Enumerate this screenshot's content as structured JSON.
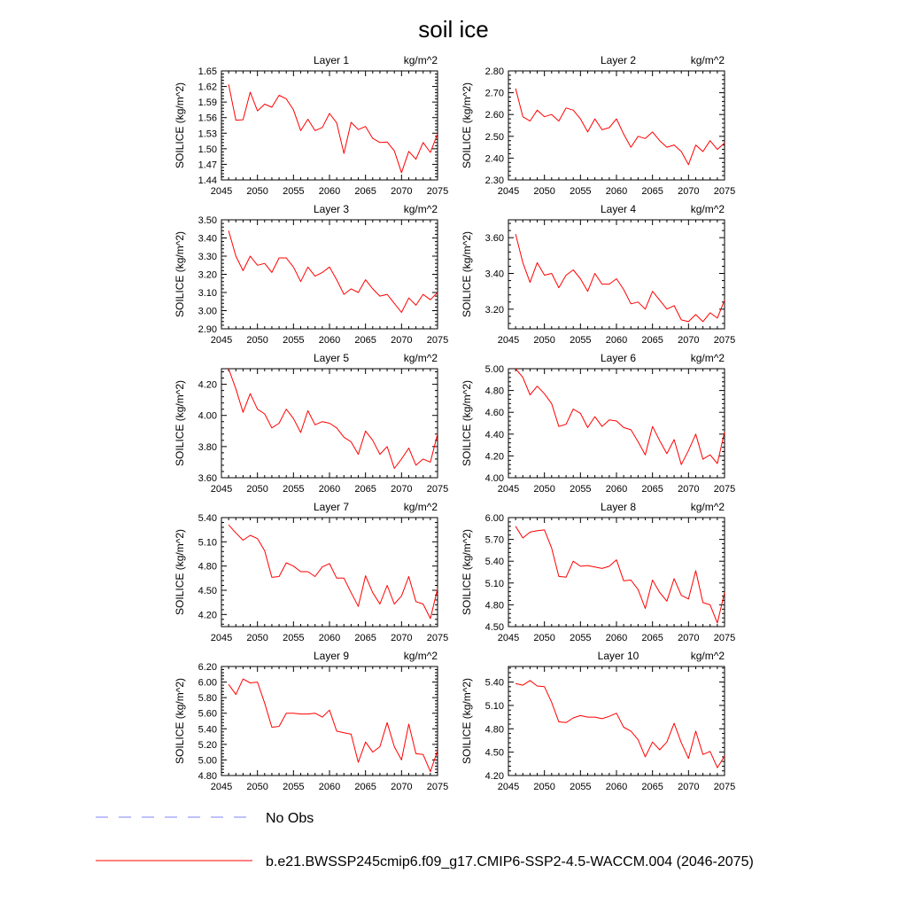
{
  "title": "soil ice",
  "chart_data": {
    "type": "line",
    "title": "soil ice",
    "units": "kg/m^2",
    "ylabel": "SOILICE  (kg/m^2)",
    "x": [
      2046,
      2047,
      2048,
      2049,
      2050,
      2051,
      2052,
      2053,
      2054,
      2055,
      2056,
      2057,
      2058,
      2059,
      2060,
      2061,
      2062,
      2063,
      2064,
      2065,
      2066,
      2067,
      2068,
      2069,
      2070,
      2071,
      2072,
      2073,
      2074,
      2075
    ],
    "xlim": [
      2045,
      2075
    ],
    "xticks": [
      "2045",
      "2050",
      "2055",
      "2060",
      "2065",
      "2070",
      "2075"
    ],
    "legend": [
      {
        "label": "No Obs",
        "color": "#8080ff",
        "style": "dashed"
      },
      {
        "label": "b.e21.BWSSP245cmip6.f09_g17.CMIP6-SSP2-4.5-WACCM.004 (2046-2075)",
        "color": "#ff0000",
        "style": "solid"
      }
    ],
    "panels": [
      {
        "title": "Layer 1",
        "units": "kg/m^2",
        "ylim": [
          1.44,
          1.65
        ],
        "yticks": [
          "1.44",
          "1.47",
          "1.50",
          "1.53",
          "1.56",
          "1.59",
          "1.62",
          "1.65"
        ],
        "values": [
          1.624,
          1.555,
          1.556,
          1.609,
          1.573,
          1.586,
          1.58,
          1.603,
          1.596,
          1.575,
          1.535,
          1.557,
          1.535,
          1.541,
          1.568,
          1.55,
          1.491,
          1.551,
          1.537,
          1.543,
          1.52,
          1.512,
          1.513,
          1.496,
          1.454,
          1.495,
          1.48,
          1.512,
          1.493,
          1.529
        ]
      },
      {
        "title": "Layer 2",
        "units": "kg/m^2",
        "ylim": [
          2.3,
          2.8
        ],
        "yticks": [
          "2.30",
          "2.40",
          "2.50",
          "2.60",
          "2.70",
          "2.80"
        ],
        "values": [
          2.72,
          2.59,
          2.57,
          2.62,
          2.59,
          2.6,
          2.57,
          2.63,
          2.62,
          2.58,
          2.52,
          2.58,
          2.53,
          2.54,
          2.58,
          2.51,
          2.45,
          2.5,
          2.49,
          2.52,
          2.48,
          2.45,
          2.46,
          2.43,
          2.37,
          2.46,
          2.43,
          2.48,
          2.44,
          2.47
        ]
      },
      {
        "title": "Layer 3",
        "units": "kg/m^2",
        "ylim": [
          2.9,
          3.5
        ],
        "yticks": [
          "2.90",
          "3.00",
          "3.10",
          "3.20",
          "3.30",
          "3.40",
          "3.50"
        ],
        "values": [
          3.44,
          3.3,
          3.22,
          3.3,
          3.25,
          3.26,
          3.21,
          3.29,
          3.29,
          3.24,
          3.16,
          3.24,
          3.19,
          3.21,
          3.24,
          3.17,
          3.09,
          3.12,
          3.1,
          3.17,
          3.12,
          3.08,
          3.09,
          3.04,
          2.99,
          3.07,
          3.03,
          3.09,
          3.06,
          3.1
        ]
      },
      {
        "title": "Layer 4",
        "units": "kg/m^2",
        "ylim": [
          3.09,
          3.7
        ],
        "yticks": [
          "3.20",
          "3.40",
          "3.60"
        ],
        "values": [
          3.62,
          3.46,
          3.35,
          3.46,
          3.39,
          3.4,
          3.32,
          3.39,
          3.42,
          3.37,
          3.3,
          3.4,
          3.34,
          3.34,
          3.37,
          3.31,
          3.23,
          3.24,
          3.2,
          3.3,
          3.25,
          3.2,
          3.22,
          3.14,
          3.13,
          3.17,
          3.13,
          3.18,
          3.15,
          3.25
        ]
      },
      {
        "title": "Layer 5",
        "units": "kg/m^2",
        "ylim": [
          3.6,
          4.3
        ],
        "yticks": [
          "3.60",
          "3.80",
          "4.00",
          "4.20"
        ],
        "values": [
          4.3,
          4.17,
          4.02,
          4.14,
          4.04,
          4.01,
          3.92,
          3.95,
          4.04,
          3.98,
          3.89,
          4.03,
          3.94,
          3.96,
          3.95,
          3.92,
          3.86,
          3.83,
          3.75,
          3.9,
          3.84,
          3.75,
          3.8,
          3.66,
          3.72,
          3.79,
          3.68,
          3.72,
          3.7,
          3.88
        ]
      },
      {
        "title": "Layer 6",
        "units": "kg/m^2",
        "ylim": [
          4.0,
          5.0
        ],
        "yticks": [
          "4.00",
          "4.20",
          "4.40",
          "4.60",
          "4.80",
          "5.00"
        ],
        "values": [
          5.0,
          4.92,
          4.76,
          4.84,
          4.77,
          4.68,
          4.47,
          4.49,
          4.63,
          4.59,
          4.46,
          4.56,
          4.47,
          4.53,
          4.52,
          4.46,
          4.44,
          4.33,
          4.21,
          4.47,
          4.34,
          4.22,
          4.35,
          4.12,
          4.25,
          4.4,
          4.17,
          4.21,
          4.13,
          4.42
        ]
      },
      {
        "title": "Layer 7",
        "units": "kg/m^2",
        "ylim": [
          4.05,
          5.4
        ],
        "yticks": [
          "4.20",
          "4.50",
          "4.80",
          "5.10",
          "5.40"
        ],
        "values": [
          5.31,
          5.21,
          5.12,
          5.18,
          5.14,
          4.99,
          4.66,
          4.67,
          4.84,
          4.8,
          4.73,
          4.73,
          4.67,
          4.79,
          4.83,
          4.65,
          4.65,
          4.47,
          4.3,
          4.68,
          4.47,
          4.33,
          4.56,
          4.33,
          4.43,
          4.67,
          4.36,
          4.33,
          4.15,
          4.52
        ]
      },
      {
        "title": "Layer 8",
        "units": "kg/m^2",
        "ylim": [
          4.5,
          6.0
        ],
        "yticks": [
          "4.50",
          "4.80",
          "5.10",
          "5.40",
          "5.70",
          "6.00"
        ],
        "values": [
          5.88,
          5.72,
          5.8,
          5.82,
          5.83,
          5.58,
          5.19,
          5.18,
          5.4,
          5.33,
          5.34,
          5.32,
          5.3,
          5.33,
          5.42,
          5.13,
          5.14,
          5.01,
          4.75,
          5.14,
          4.97,
          4.85,
          5.16,
          4.93,
          4.88,
          5.27,
          4.83,
          4.8,
          4.55,
          4.97
        ]
      },
      {
        "title": "Layer 9",
        "units": "kg/m^2",
        "ylim": [
          4.8,
          6.2
        ],
        "yticks": [
          "4.80",
          "5.00",
          "5.20",
          "5.40",
          "5.60",
          "5.80",
          "6.00",
          "6.20"
        ],
        "values": [
          5.97,
          5.84,
          6.04,
          5.99,
          6.0,
          5.73,
          5.42,
          5.43,
          5.6,
          5.6,
          5.59,
          5.59,
          5.6,
          5.55,
          5.64,
          5.37,
          5.35,
          5.33,
          4.97,
          5.23,
          5.1,
          5.17,
          5.48,
          5.17,
          5.0,
          5.46,
          5.08,
          5.07,
          4.85,
          5.12
        ]
      },
      {
        "title": "Layer 10",
        "units": "kg/m^2",
        "ylim": [
          4.2,
          5.6
        ],
        "yticks": [
          "4.20",
          "4.50",
          "4.80",
          "5.10",
          "5.40"
        ],
        "values": [
          5.38,
          5.36,
          5.42,
          5.35,
          5.34,
          5.14,
          4.89,
          4.88,
          4.94,
          4.97,
          4.95,
          4.95,
          4.93,
          4.96,
          5.0,
          4.82,
          4.77,
          4.66,
          4.44,
          4.63,
          4.53,
          4.63,
          4.87,
          4.62,
          4.42,
          4.77,
          4.47,
          4.51,
          4.3,
          4.45
        ]
      }
    ]
  }
}
